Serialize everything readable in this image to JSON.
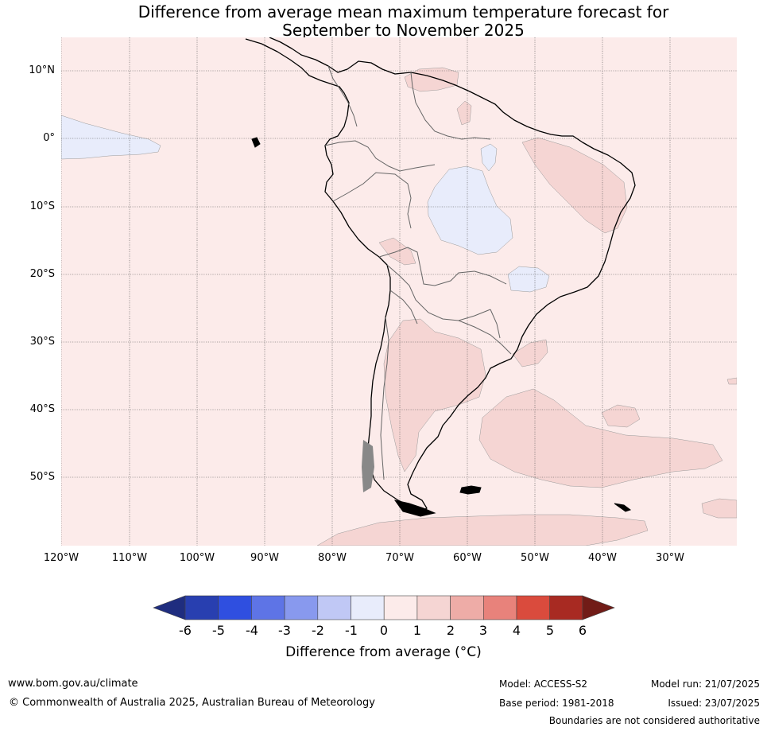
{
  "title_line1": "Difference from average mean maximum temperature forecast for",
  "title_line2": "September to November 2025",
  "lat_labels": [
    "10°N",
    "0°",
    "10°S",
    "20°S",
    "30°S",
    "40°S",
    "50°S"
  ],
  "lon_labels": [
    "120°W",
    "110°W",
    "100°W",
    "90°W",
    "80°W",
    "70°W",
    "60°W",
    "50°W",
    "40°W",
    "30°W"
  ],
  "colorbar": {
    "label": "Difference from average (°C)",
    "ticks": [
      "-6",
      "-5",
      "-4",
      "-3",
      "-2",
      "-1",
      "0",
      "1",
      "2",
      "3",
      "4",
      "5",
      "6"
    ],
    "colors": [
      "#1f2d7f",
      "#283fb0",
      "#2f4fe0",
      "#5e74e6",
      "#8899ee",
      "#c0c8f5",
      "#e8ecfb",
      "#fcebea",
      "#f5d5d3",
      "#eeaca7",
      "#e8827b",
      "#da4b3d",
      "#a82a22",
      "#711c17"
    ]
  },
  "map": {
    "background_anomaly_class": "0 to 1",
    "region_classes": [
      "-1 to 0",
      "0 to 1",
      "1 to 2"
    ]
  },
  "footer": {
    "website": "www.bom.gov.au/climate",
    "copyright": "© Commonwealth of Australia 2025, Australian Bureau of Meteorology",
    "model": "Model: ACCESS-S2",
    "base_period": "Base period: 1981-2018",
    "model_run": "Model run: 21/07/2025",
    "issued": "Issued: 23/07/2025",
    "disclaimer": "Boundaries are not considered authoritative"
  }
}
